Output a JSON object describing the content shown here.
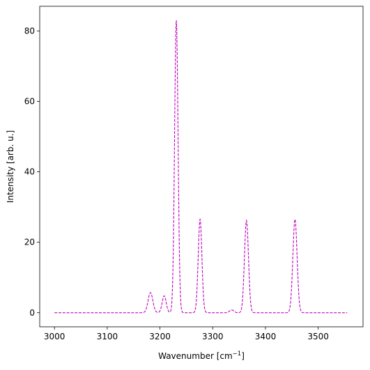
{
  "chart_data": {
    "type": "line",
    "title": "",
    "xlabel": {
      "main": "Wavenumber [cm",
      "sup": "−1",
      "close": "]"
    },
    "ylabel": "Intensity [arb. u.]",
    "xlim": [
      2972,
      3585
    ],
    "ylim": [
      -4,
      87
    ],
    "xticks": [
      3000,
      3100,
      3200,
      3300,
      3400,
      3500
    ],
    "yticks": [
      0,
      20,
      40,
      60,
      80
    ],
    "grid": false,
    "legend": "none",
    "x_range": [
      3000,
      3555
    ],
    "series": [
      {
        "color": "#bf00bf",
        "linestyle": "dashed",
        "peaks": [
          {
            "center": 3182,
            "height": 5.7,
            "width": 4.5
          },
          {
            "center": 3208,
            "height": 4.8,
            "width": 3.8
          },
          {
            "center": 3231,
            "height": 83,
            "width": 3.3
          },
          {
            "center": 3276,
            "height": 26.5,
            "width": 3.5
          },
          {
            "center": 3336,
            "height": 0.8,
            "width": 4
          },
          {
            "center": 3364,
            "height": 26.2,
            "width": 3.8
          },
          {
            "center": 3456,
            "height": 26.5,
            "width": 4
          }
        ]
      }
    ]
  }
}
